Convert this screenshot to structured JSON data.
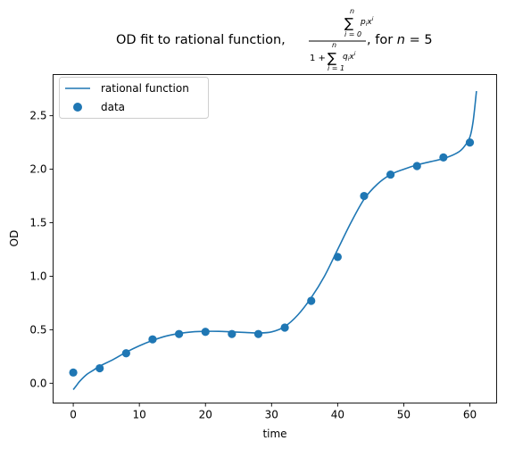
{
  "chart_data": {
    "type": "scatter",
    "title": {
      "prefix": "OD fit to rational function,",
      "suffix": ", for ",
      "n_var": "n",
      "equals": " = ",
      "n_value": "5"
    },
    "xlabel": "time",
    "ylabel": "OD",
    "xlim": [
      -3.05,
      64.05
    ],
    "ylim": [
      -0.185,
      2.885
    ],
    "xticks": [
      0,
      10,
      20,
      30,
      40,
      50,
      60
    ],
    "xtick_labels": [
      "0",
      "10",
      "20",
      "30",
      "40",
      "50",
      "60"
    ],
    "yticks": [
      0.0,
      0.5,
      1.0,
      1.5,
      2.0,
      2.5
    ],
    "ytick_labels": [
      "0.0",
      "0.5",
      "1.0",
      "1.5",
      "2.0",
      "2.5"
    ],
    "grid": false,
    "legend": {
      "position": "upper left",
      "entries": [
        "rational function",
        "data"
      ]
    },
    "series": [
      {
        "name": "data",
        "kind": "scatter",
        "color": "#1f77b4",
        "x": [
          0,
          4,
          8,
          12,
          16,
          20,
          24,
          28,
          32,
          36,
          40,
          44,
          48,
          52,
          56,
          60
        ],
        "y": [
          0.1,
          0.14,
          0.28,
          0.41,
          0.46,
          0.48,
          0.46,
          0.46,
          0.52,
          0.77,
          1.18,
          1.75,
          1.95,
          2.03,
          2.11,
          2.25
        ]
      },
      {
        "name": "rational function",
        "kind": "line",
        "color": "#1f77b4",
        "x": [
          0,
          0.5,
          1,
          2,
          3,
          4,
          6,
          8,
          10,
          12,
          14,
          16,
          18,
          20,
          22,
          24,
          26,
          28,
          30,
          32,
          34,
          36,
          38,
          40,
          42,
          44,
          46,
          48,
          50,
          52,
          54,
          56,
          58,
          59,
          60,
          60.5,
          61
        ],
        "y": [
          -0.06,
          -0.02,
          0.02,
          0.08,
          0.12,
          0.16,
          0.22,
          0.29,
          0.35,
          0.4,
          0.44,
          0.465,
          0.48,
          0.485,
          0.485,
          0.48,
          0.475,
          0.47,
          0.48,
          0.53,
          0.64,
          0.8,
          1.0,
          1.25,
          1.5,
          1.72,
          1.86,
          1.95,
          2.0,
          2.04,
          2.07,
          2.1,
          2.15,
          2.2,
          2.3,
          2.45,
          2.73
        ]
      }
    ]
  }
}
